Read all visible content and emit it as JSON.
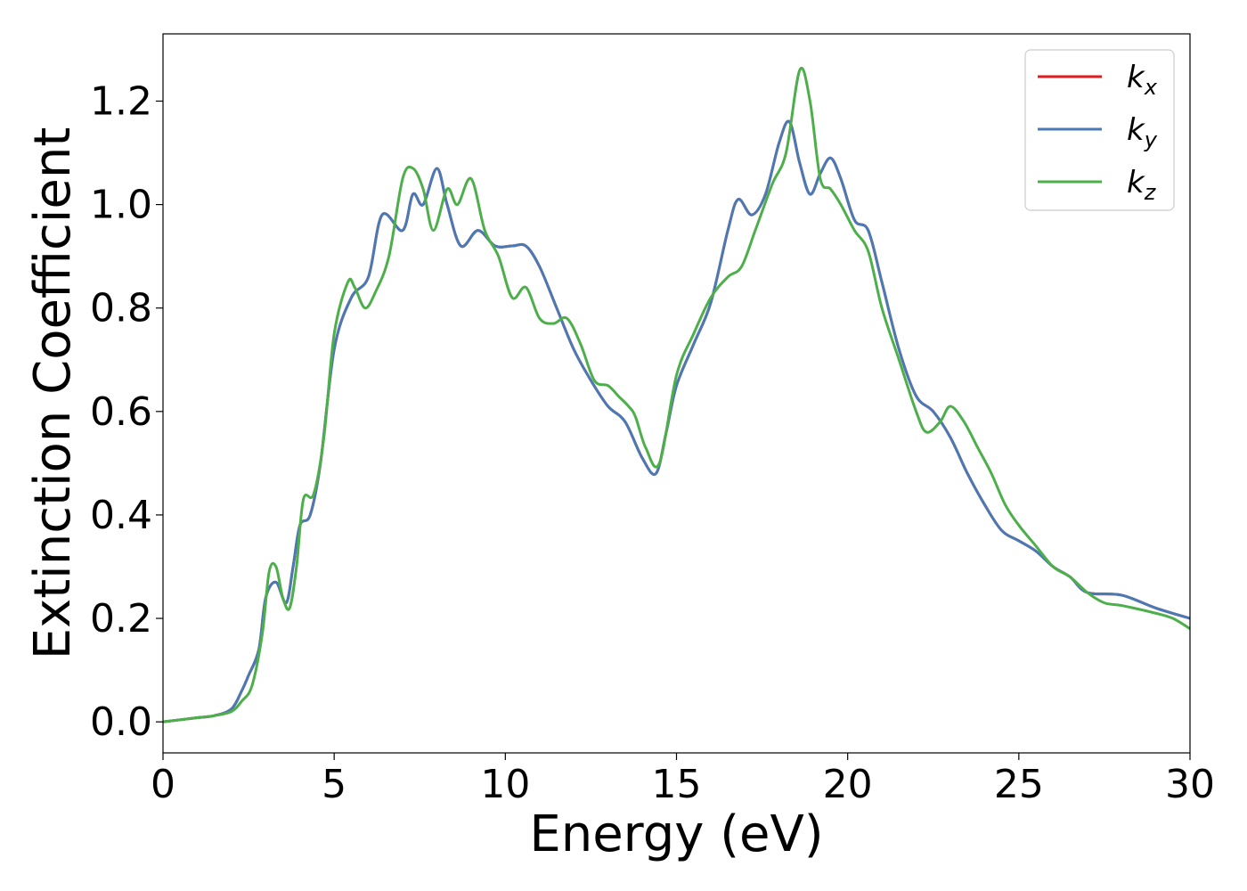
{
  "chart_data": {
    "type": "line",
    "title": "",
    "xlabel": "Energy (eV)",
    "ylabel": "Extinction Coefficient",
    "xlim": [
      0,
      30
    ],
    "ylim": [
      -0.06,
      1.33
    ],
    "xticks": [
      0,
      5,
      10,
      15,
      20,
      25,
      30
    ],
    "xtick_labels": [
      "0",
      "5",
      "10",
      "15",
      "20",
      "25",
      "30"
    ],
    "yticks": [
      0.0,
      0.2,
      0.4,
      0.6,
      0.8,
      1.0,
      1.2
    ],
    "ytick_labels": [
      "0.0",
      "0.2",
      "0.4",
      "0.6",
      "0.8",
      "1.0",
      "1.2"
    ],
    "grid": false,
    "legend_position": "top-right",
    "series": [
      {
        "name": "k",
        "subscript": "x",
        "color": "#e41a1c",
        "x": [
          0,
          1,
          1.5,
          2,
          2.3,
          2.5,
          2.8,
          3.0,
          3.3,
          3.6,
          3.8,
          4.0,
          4.3,
          4.6,
          5.0,
          5.5,
          6.0,
          6.4,
          7.0,
          7.3,
          7.6,
          8.0,
          8.3,
          8.7,
          9.2,
          9.7,
          10.2,
          10.6,
          11.0,
          11.5,
          12.0,
          12.5,
          13.0,
          13.5,
          14.0,
          14.4,
          14.7,
          15.0,
          15.5,
          16.0,
          16.5,
          16.8,
          17.2,
          17.6,
          18.0,
          18.3,
          18.6,
          18.9,
          19.2,
          19.5,
          19.8,
          20.2,
          20.6,
          21.0,
          21.5,
          22.0,
          22.5,
          23.0,
          23.5,
          24.0,
          24.5,
          25.0,
          25.5,
          26.0,
          26.5,
          27.0,
          28.0,
          29.0,
          30.0
        ],
        "values": [
          0.0,
          0.008,
          0.012,
          0.025,
          0.06,
          0.09,
          0.14,
          0.24,
          0.27,
          0.23,
          0.3,
          0.38,
          0.4,
          0.5,
          0.72,
          0.82,
          0.86,
          0.98,
          0.95,
          1.02,
          1.0,
          1.07,
          1.0,
          0.92,
          0.95,
          0.92,
          0.92,
          0.92,
          0.88,
          0.8,
          0.72,
          0.66,
          0.61,
          0.58,
          0.51,
          0.48,
          0.56,
          0.65,
          0.73,
          0.81,
          0.95,
          1.01,
          0.98,
          1.02,
          1.12,
          1.16,
          1.08,
          1.02,
          1.06,
          1.09,
          1.05,
          0.97,
          0.95,
          0.85,
          0.72,
          0.63,
          0.6,
          0.55,
          0.48,
          0.42,
          0.37,
          0.35,
          0.33,
          0.3,
          0.28,
          0.25,
          0.245,
          0.22,
          0.2
        ]
      },
      {
        "name": "k",
        "subscript": "y",
        "color": "#4a7ab5",
        "x": [
          0,
          1,
          1.5,
          2,
          2.3,
          2.5,
          2.8,
          3.0,
          3.3,
          3.6,
          3.8,
          4.0,
          4.3,
          4.6,
          5.0,
          5.5,
          6.0,
          6.4,
          7.0,
          7.3,
          7.6,
          8.0,
          8.3,
          8.7,
          9.2,
          9.7,
          10.2,
          10.6,
          11.0,
          11.5,
          12.0,
          12.5,
          13.0,
          13.5,
          14.0,
          14.4,
          14.7,
          15.0,
          15.5,
          16.0,
          16.5,
          16.8,
          17.2,
          17.6,
          18.0,
          18.3,
          18.6,
          18.9,
          19.2,
          19.5,
          19.8,
          20.2,
          20.6,
          21.0,
          21.5,
          22.0,
          22.5,
          23.0,
          23.5,
          24.0,
          24.5,
          25.0,
          25.5,
          26.0,
          26.5,
          27.0,
          28.0,
          29.0,
          30.0
        ],
        "values": [
          0.0,
          0.008,
          0.012,
          0.025,
          0.06,
          0.09,
          0.14,
          0.24,
          0.27,
          0.23,
          0.3,
          0.38,
          0.4,
          0.5,
          0.72,
          0.82,
          0.86,
          0.98,
          0.95,
          1.02,
          1.0,
          1.07,
          1.0,
          0.92,
          0.95,
          0.92,
          0.92,
          0.92,
          0.88,
          0.8,
          0.72,
          0.66,
          0.61,
          0.58,
          0.51,
          0.48,
          0.56,
          0.65,
          0.73,
          0.81,
          0.95,
          1.01,
          0.98,
          1.02,
          1.12,
          1.16,
          1.08,
          1.02,
          1.06,
          1.09,
          1.05,
          0.97,
          0.95,
          0.85,
          0.72,
          0.63,
          0.6,
          0.55,
          0.48,
          0.42,
          0.37,
          0.35,
          0.33,
          0.3,
          0.28,
          0.25,
          0.245,
          0.22,
          0.2
        ]
      },
      {
        "name": "k",
        "subscript": "z",
        "color": "#4daf4a",
        "x": [
          0,
          1,
          1.5,
          2,
          2.3,
          2.6,
          2.9,
          3.1,
          3.3,
          3.5,
          3.7,
          3.9,
          4.1,
          4.4,
          4.7,
          5.0,
          5.4,
          5.6,
          5.9,
          6.2,
          6.6,
          7.0,
          7.3,
          7.6,
          7.9,
          8.3,
          8.6,
          9.0,
          9.4,
          9.8,
          10.2,
          10.6,
          11.0,
          11.4,
          11.8,
          12.2,
          12.6,
          13.0,
          13.3,
          13.6,
          13.8,
          14.1,
          14.5,
          15.0,
          15.5,
          16.0,
          16.5,
          16.9,
          17.3,
          17.8,
          18.2,
          18.6,
          18.9,
          19.2,
          19.5,
          19.8,
          20.2,
          20.6,
          21.0,
          21.5,
          22.0,
          22.3,
          22.7,
          23.0,
          23.4,
          23.8,
          24.2,
          24.6,
          25.0,
          25.5,
          26.0,
          26.5,
          27.0,
          27.5,
          28.0,
          29.0,
          29.5,
          30.0
        ],
        "values": [
          0.0,
          0.008,
          0.012,
          0.02,
          0.04,
          0.07,
          0.17,
          0.29,
          0.3,
          0.24,
          0.22,
          0.3,
          0.43,
          0.44,
          0.55,
          0.75,
          0.85,
          0.84,
          0.8,
          0.83,
          0.9,
          1.05,
          1.07,
          1.03,
          0.95,
          1.03,
          1.0,
          1.05,
          0.95,
          0.9,
          0.82,
          0.84,
          0.78,
          0.77,
          0.78,
          0.73,
          0.66,
          0.65,
          0.63,
          0.61,
          0.59,
          0.53,
          0.5,
          0.67,
          0.75,
          0.82,
          0.86,
          0.88,
          0.95,
          1.04,
          1.1,
          1.26,
          1.2,
          1.05,
          1.03,
          1.0,
          0.95,
          0.91,
          0.8,
          0.7,
          0.6,
          0.56,
          0.58,
          0.61,
          0.58,
          0.53,
          0.48,
          0.42,
          0.38,
          0.34,
          0.3,
          0.28,
          0.25,
          0.23,
          0.225,
          0.21,
          0.2,
          0.18
        ]
      }
    ]
  }
}
